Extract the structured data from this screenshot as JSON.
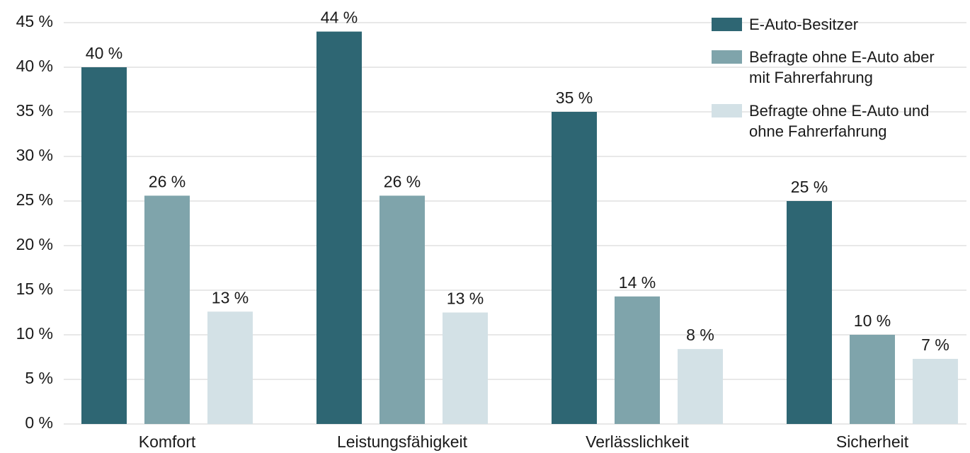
{
  "chart_data": {
    "type": "bar",
    "categories": [
      "Komfort",
      "Leistungsfähigkeit",
      "Verlässlichkeit",
      "Sicherheit"
    ],
    "series": [
      {
        "name": "E-Auto-Besitzer",
        "color": "#2e6673",
        "values": [
          40,
          44,
          35,
          25
        ],
        "value_labels": [
          "40 %",
          "44 %",
          "35 %",
          "25 %"
        ]
      },
      {
        "name": "Befragte ohne E-Auto aber mit Fahrerfahrung",
        "color": "#7fa4ab",
        "values": [
          25.6,
          25.6,
          14.3,
          10
        ],
        "value_labels": [
          "26 %",
          "26 %",
          "14 %",
          "10 %"
        ]
      },
      {
        "name": "Befragte ohne E-Auto und ohne Fahrerfahrung",
        "color": "#d3e1e6",
        "values": [
          12.6,
          12.5,
          8.4,
          7.3
        ],
        "value_labels": [
          "13 %",
          "13 %",
          "8 %",
          "7 %"
        ]
      }
    ],
    "ylim": [
      0,
      45
    ],
    "yticks": [
      {
        "value": 0,
        "label": "0 %"
      },
      {
        "value": 5,
        "label": "5 %"
      },
      {
        "value": 10,
        "label": "10 %"
      },
      {
        "value": 15,
        "label": "15 %"
      },
      {
        "value": 20,
        "label": "20 %"
      },
      {
        "value": 25,
        "label": "25 %"
      },
      {
        "value": 30,
        "label": "30 %"
      },
      {
        "value": 35,
        "label": "35 %"
      },
      {
        "value": 40,
        "label": "40 %"
      },
      {
        "value": 45,
        "label": "45 %"
      }
    ],
    "grid": true,
    "legend": "upper right"
  }
}
